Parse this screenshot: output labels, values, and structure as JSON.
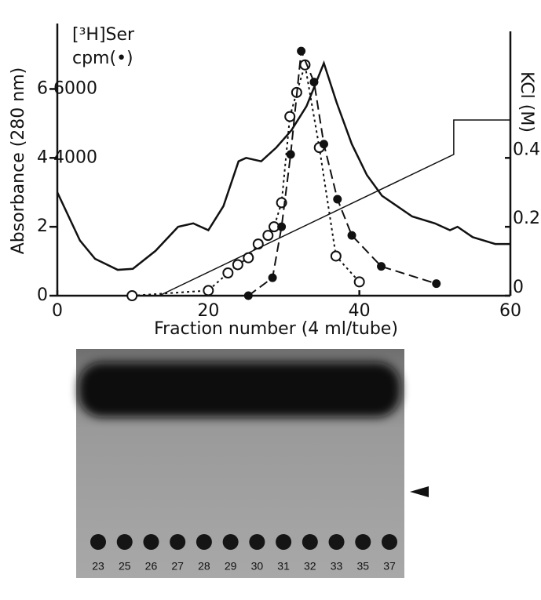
{
  "chart_data": {
    "type": "line",
    "x_label": "Fraction number (4 ml/tube)",
    "y_label": "Absorbance (280 nm)",
    "y2_label": "KCl (M)",
    "legend_label": [
      "[³H]Ser",
      "cpm(•)"
    ],
    "xlim": [
      0,
      60
    ],
    "xticks": [
      0,
      20,
      40,
      60
    ],
    "ylim": [
      0,
      7.9
    ],
    "yticks": [
      0,
      2,
      4,
      6
    ],
    "y2lim": [
      0,
      0.79
    ],
    "y2ticks": [
      0,
      0.2,
      0.4
    ],
    "y3lim": [
      0,
      7900
    ],
    "y3ticks": [
      4000,
      6000
    ],
    "series": [
      {
        "color": "#111111",
        "line_style": "solid",
        "marker": "none",
        "axis": "y",
        "x": [
          0,
          3,
          5,
          8,
          10,
          13,
          16,
          18,
          20,
          22,
          24,
          25,
          27,
          29,
          31,
          33,
          35.3,
          37,
          39,
          41,
          43,
          45,
          47,
          50,
          52,
          53,
          55,
          58,
          60
        ],
        "values": [
          3.0,
          1.6,
          1.07,
          0.75,
          0.78,
          1.3,
          2.0,
          2.1,
          1.9,
          2.6,
          3.9,
          4.0,
          3.9,
          4.3,
          4.8,
          5.5,
          6.75,
          5.6,
          4.4,
          3.5,
          2.9,
          2.6,
          2.3,
          2.1,
          1.9,
          2.0,
          1.7,
          1.5,
          1.5
        ]
      },
      {
        "color": "#111111",
        "line_style": "dotted",
        "marker": "open-circle",
        "axis": "y",
        "x": [
          9.9,
          20,
          22.6,
          23.9,
          25.3,
          26.6,
          27.9,
          28.7,
          29.7,
          30.8,
          31.7,
          32.8,
          34.7,
          36.9,
          40
        ],
        "values": [
          0,
          0.15,
          0.66,
          0.9,
          1.1,
          1.5,
          1.75,
          2.0,
          2.7,
          5.2,
          5.9,
          6.7,
          4.3,
          1.15,
          0.4
        ]
      },
      {
        "color": "#111111",
        "line_style": "dashed",
        "marker": "filled-circle",
        "axis": "y3",
        "x": [
          25.3,
          28.5,
          29.7,
          30.9,
          32.3,
          34,
          35.3,
          37.1,
          39,
          42.9,
          50.2
        ],
        "values": [
          0,
          520,
          2000,
          4100,
          7100,
          6200,
          4400,
          2800,
          1750,
          850,
          350
        ]
      },
      {
        "color": "#111111",
        "line_style": "thin",
        "marker": "none",
        "axis": "y2",
        "x": [
          13.5,
          52.5,
          52.5,
          60
        ],
        "values": [
          0,
          0.41,
          0.51,
          0.51
        ]
      }
    ]
  },
  "gel": {
    "lanes": [
      "23",
      "25",
      "26",
      "27",
      "28",
      "29",
      "30",
      "31",
      "32",
      "33",
      "35",
      "37"
    ]
  }
}
